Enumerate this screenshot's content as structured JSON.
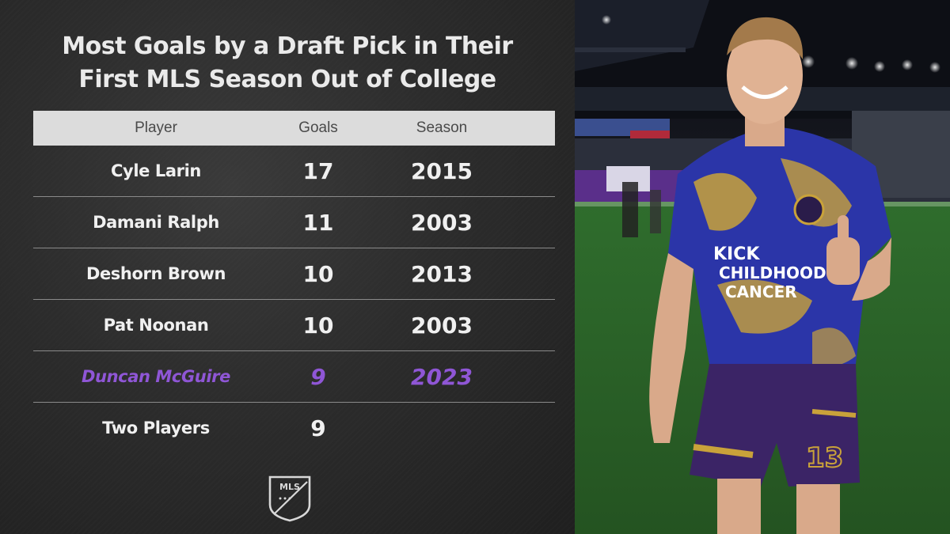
{
  "title_lines": [
    "Most Goals by a Draft Pick in Their",
    "First MLS Season Out of College"
  ],
  "headers": {
    "player": "Player",
    "goals": "Goals",
    "season": "Season"
  },
  "rows": [
    {
      "player": "Cyle Larin",
      "goals": "17",
      "season": "2015",
      "highlight": false
    },
    {
      "player": "Damani Ralph",
      "goals": "11",
      "season": "2003",
      "highlight": false
    },
    {
      "player": "Deshorn Brown",
      "goals": "10",
      "season": "2013",
      "highlight": false
    },
    {
      "player": "Pat Noonan",
      "goals": "10",
      "season": "2003",
      "highlight": false
    },
    {
      "player": "Duncan McGuire",
      "goals": "9",
      "season": "2023",
      "highlight": true
    },
    {
      "player": "Two Players",
      "goals": "9",
      "season": "",
      "highlight": false
    }
  ],
  "logo_text": "MLS",
  "jersey": {
    "text_line1": "KICK",
    "text_line2": "CHILDHOOD",
    "text_line3": "CANCER",
    "number": "13"
  },
  "colors": {
    "highlight": "#8f56d6",
    "header_bg": "#dcdcdc",
    "jersey_blue": "#2b35a8",
    "jersey_gold": "#c9a23a",
    "shorts_purple": "#3b2466"
  },
  "icons": [
    "mls-logo-icon",
    "player-photo"
  ]
}
